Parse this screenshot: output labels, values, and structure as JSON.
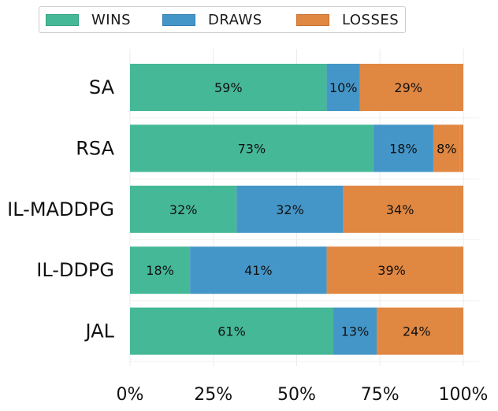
{
  "chart_data": {
    "type": "bar",
    "orientation": "horizontal",
    "stacked": true,
    "categories": [
      "SA",
      "RSA",
      "IL-MADDPG",
      "IL-DDPG",
      "JAL"
    ],
    "series": [
      {
        "name": "WINS",
        "color": "#45b897",
        "values": [
          59,
          73,
          32,
          18,
          61
        ]
      },
      {
        "name": "DRAWS",
        "color": "#4596c8",
        "values": [
          10,
          18,
          32,
          41,
          13
        ]
      },
      {
        "name": "LOSSES",
        "color": "#e08742",
        "values": [
          29,
          8,
          34,
          39,
          24
        ]
      }
    ],
    "xticks": [
      "0%",
      "25%",
      "50%",
      "75%",
      "100%"
    ],
    "xlim": [
      0,
      100
    ],
    "grid": true,
    "legend_position": "top"
  }
}
